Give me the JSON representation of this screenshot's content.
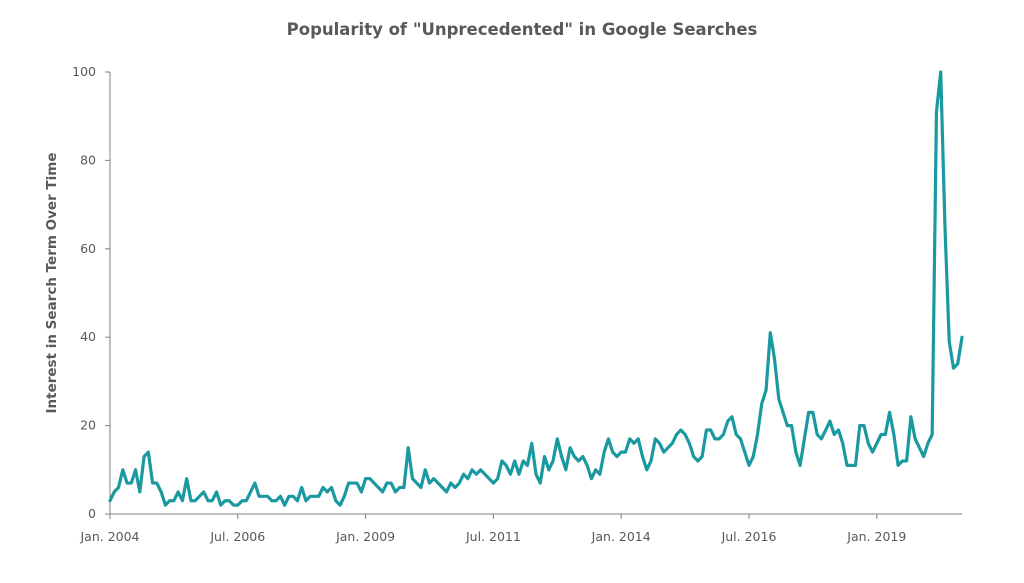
{
  "chart_data": {
    "type": "line",
    "title": "Popularity of \"Unprecedented\" in Google Searches",
    "xlabel": "",
    "ylabel": "Interest in Search Term Over Time",
    "x_start": "2004-01",
    "x_ticks": [
      "Jan. 2004",
      "Jul. 2006",
      "Jan. 2009",
      "Jul. 2011",
      "Jan. 2014",
      "Jul. 2016",
      "Jan. 2019"
    ],
    "y_ticks": [
      "0",
      "20",
      "40",
      "60",
      "80",
      "100"
    ],
    "ylim": [
      0,
      100
    ],
    "grid": false,
    "color": "#1a9aa0",
    "series": [
      {
        "values": [
          3,
          5,
          6,
          10,
          7,
          7,
          10,
          5,
          13,
          14,
          7,
          7,
          5,
          2,
          3,
          3,
          5,
          3,
          8,
          3,
          3,
          4,
          5,
          3,
          3,
          5,
          2,
          3,
          3,
          2,
          2,
          3,
          3,
          5,
          7,
          4,
          4,
          4,
          3,
          3,
          4,
          2,
          4,
          4,
          3,
          6,
          3,
          4,
          4,
          4,
          6,
          5,
          6,
          3,
          2,
          4,
          7,
          7,
          7,
          5,
          8,
          8,
          7,
          6,
          5,
          7,
          7,
          5,
          6,
          6,
          15,
          8,
          7,
          6,
          10,
          7,
          8,
          7,
          6,
          5,
          7,
          6,
          7,
          9,
          8,
          10,
          9,
          10,
          9,
          8,
          7,
          8,
          12,
          11,
          9,
          12,
          9,
          12,
          11,
          16,
          9,
          7,
          13,
          10,
          12,
          17,
          13,
          10,
          15,
          13,
          12,
          13,
          11,
          8,
          10,
          9,
          14,
          17,
          14,
          13,
          14,
          14,
          17,
          16,
          17,
          13,
          10,
          12,
          17,
          16,
          14,
          15,
          16,
          18,
          19,
          18,
          16,
          13,
          12,
          13,
          19,
          19,
          17,
          17,
          18,
          21,
          22,
          18,
          17,
          14,
          11,
          13,
          18,
          25,
          28,
          41,
          35,
          26,
          23,
          20,
          20,
          14,
          11,
          17,
          23,
          23,
          18,
          17,
          19,
          21,
          18,
          19,
          16,
          11,
          11,
          11,
          20,
          20,
          16,
          14,
          16,
          18,
          18,
          23,
          18,
          11,
          12,
          12,
          22,
          17,
          15,
          13,
          16,
          18,
          91,
          100,
          65,
          39,
          33,
          34,
          40
        ]
      }
    ]
  }
}
